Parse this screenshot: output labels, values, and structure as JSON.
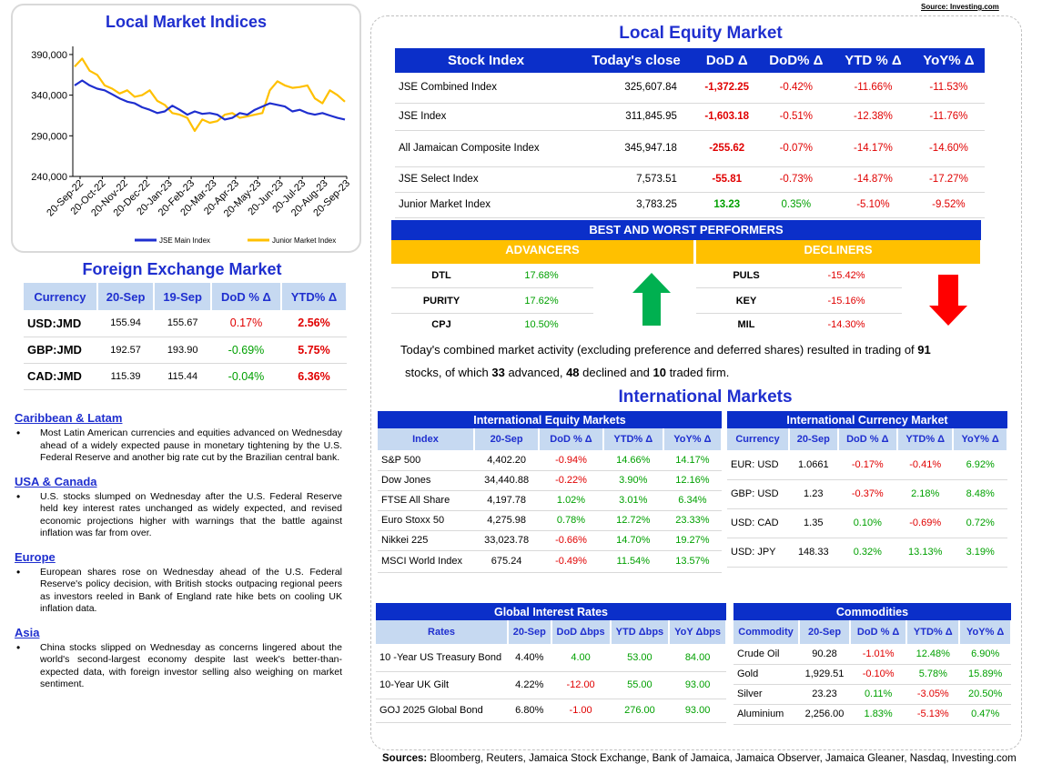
{
  "source_top": "Source: Investing.com",
  "indices_chart": {
    "title": "Local Market Indices",
    "chart_data": {
      "type": "line",
      "x_labels": [
        "20-Sep-22",
        "20-Oct-22",
        "20-Nov-22",
        "20-Dec-22",
        "20-Jan-23",
        "20-Feb-23",
        "20-Mar-23",
        "20-Apr-23",
        "20-May-23",
        "20-Jun-23",
        "20-Jul-23",
        "20-Aug-23",
        "20-Sep-23"
      ],
      "y_ticks": [
        "390,000",
        "340,000",
        "290,000",
        "240,000"
      ],
      "ylim": [
        240000,
        400000
      ],
      "series": [
        {
          "name": "JSE Main Index",
          "color": "#1f2fcf",
          "values": [
            352000,
            358000,
            352000,
            348000,
            346000,
            341000,
            336000,
            332000,
            330000,
            325000,
            322000,
            318000,
            320000,
            327000,
            322000,
            316000,
            320000,
            317000,
            318000,
            316000,
            310000,
            312000,
            318000,
            316000,
            322000,
            326000,
            330000,
            328000,
            326000,
            320000,
            322000,
            318000,
            316000,
            318000,
            315000,
            312000,
            310000
          ]
        },
        {
          "name": "Junior Market Index",
          "color": "#ffc000",
          "values": [
            375000,
            385000,
            370000,
            365000,
            352000,
            348000,
            342000,
            346000,
            338000,
            340000,
            346000,
            333000,
            328000,
            318000,
            316000,
            312000,
            296000,
            310000,
            306000,
            308000,
            316000,
            318000,
            312000,
            314000,
            316000,
            318000,
            346000,
            357000,
            352000,
            349000,
            350000,
            352000,
            336000,
            330000,
            346000,
            340000,
            332000
          ]
        }
      ]
    }
  },
  "fx": {
    "title": "Foreign Exchange Market",
    "headers": [
      "Currency",
      "20-Sep",
      "19-Sep",
      "DoD % Δ",
      "YTD% Δ"
    ],
    "rows": [
      {
        "cur": "USD:JMD",
        "a": "155.94",
        "b": "155.67",
        "dod": "0.17%",
        "ytd": "2.56%",
        "dod_c": "red",
        "ytd_c": "red"
      },
      {
        "cur": "GBP:JMD",
        "a": "192.57",
        "b": "193.90",
        "dod": "-0.69%",
        "ytd": "5.75%",
        "dod_c": "green",
        "ytd_c": "red"
      },
      {
        "cur": "CAD:JMD",
        "a": "115.39",
        "b": "115.44",
        "dod": "-0.04%",
        "ytd": "6.36%",
        "dod_c": "green",
        "ytd_c": "red"
      }
    ]
  },
  "news": [
    {
      "title": "Caribbean & Latam",
      "text": "Most Latin American currencies and equities advanced on Wednesday ahead of a widely expected pause in monetary tightening by the U.S. Federal Reserve and another big rate cut by the Brazilian central bank."
    },
    {
      "title": "USA & Canada",
      "text": "U.S. stocks slumped on Wednesday after the U.S. Federal Reserve held key interest rates unchanged as widely expected, and revised economic projections higher with warnings that the battle against inflation was far from over."
    },
    {
      "title": "Europe",
      "text": "European shares rose on Wednesday ahead of the U.S. Federal Reserve's policy decision, with British stocks outpacing regional peers as investors reeled in Bank of England rate hike bets on cooling UK inflation data."
    },
    {
      "title": "Asia",
      "text": "China stocks slipped on Wednesday as concerns lingered about the world's second-largest economy despite last week's better-than-expected data, with foreign investor selling also weighing on market sentiment."
    }
  ],
  "equity": {
    "title": "Local Equity Market",
    "headers": [
      "Stock Index",
      "Today's close",
      "DoD  Δ",
      "DoD% Δ",
      "YTD % Δ",
      "YoY% Δ"
    ],
    "rows": [
      {
        "name": "JSE Combined Index",
        "close": "325,607.84",
        "dod": "-1,372.25",
        "dodp": "-0.42%",
        "ytd": "-11.66%",
        "yoy": "-11.53%",
        "c": [
          "red",
          "red",
          "red",
          "red"
        ]
      },
      {
        "name": "JSE Index",
        "close": "311,845.95",
        "dod": "-1,603.18",
        "dodp": "-0.51%",
        "ytd": "-12.38%",
        "yoy": "-11.76%",
        "c": [
          "red",
          "red",
          "red",
          "red"
        ]
      },
      {
        "name": "All Jamaican Composite Index",
        "close": "345,947.18",
        "dod": "-255.62",
        "dodp": "-0.07%",
        "ytd": "-14.17%",
        "yoy": "-14.60%",
        "c": [
          "red",
          "red",
          "red",
          "red"
        ]
      },
      {
        "name": "JSE Select Index",
        "close": "7,573.51",
        "dod": "-55.81",
        "dodp": "-0.73%",
        "ytd": "-14.87%",
        "yoy": "-17.27%",
        "c": [
          "red",
          "red",
          "red",
          "red"
        ]
      },
      {
        "name": "Junior Market Index",
        "close": "3,783.25",
        "dod": "13.23",
        "dodp": "0.35%",
        "ytd": "-5.10%",
        "yoy": "-9.52%",
        "c": [
          "green",
          "green",
          "red",
          "red"
        ]
      }
    ]
  },
  "performers": {
    "title": "BEST AND WORST PERFORMERS",
    "advancers_label": "ADVANCERS",
    "decliners_label": "DECLINERS",
    "advancers": [
      {
        "sym": "DTL",
        "pct": "17.68%"
      },
      {
        "sym": "PURITY",
        "pct": "17.62%"
      },
      {
        "sym": "CPJ",
        "pct": "10.50%"
      }
    ],
    "decliners": [
      {
        "sym": "PULS",
        "pct": "-15.42%"
      },
      {
        "sym": "KEY",
        "pct": "-15.16%"
      },
      {
        "sym": "MIL",
        "pct": "-14.30%"
      }
    ]
  },
  "summary": {
    "p1": "Today's combined market activity (excluding preference and deferred shares) resulted in trading of ",
    "total": "91",
    "p2": "stocks, of which ",
    "adv": "33",
    "p3": " advanced, ",
    "dec": "48",
    "p4": " declined and ",
    "firm": "10",
    "p5": " traded firm."
  },
  "intl_title": "International Markets",
  "intl_equity": {
    "title": "International Equity Markets",
    "headers": [
      "Index",
      "20-Sep",
      "DoD % Δ",
      "YTD% Δ",
      "YoY% Δ"
    ],
    "rows": [
      {
        "name": "S&P 500",
        "v": "4,402.20",
        "dod": "-0.94%",
        "ytd": "14.66%",
        "yoy": "14.17%",
        "c": [
          "red",
          "green",
          "green"
        ]
      },
      {
        "name": "Dow Jones",
        "v": "34,440.88",
        "dod": "-0.22%",
        "ytd": "3.90%",
        "yoy": "12.16%",
        "c": [
          "red",
          "green",
          "green"
        ]
      },
      {
        "name": "FTSE All Share",
        "v": "4,197.78",
        "dod": "1.02%",
        "ytd": "3.01%",
        "yoy": "6.34%",
        "c": [
          "green",
          "green",
          "green"
        ]
      },
      {
        "name": "Euro Stoxx 50",
        "v": "4,275.98",
        "dod": "0.78%",
        "ytd": "12.72%",
        "yoy": "23.33%",
        "c": [
          "green",
          "green",
          "green"
        ]
      },
      {
        "name": "Nikkei 225",
        "v": "33,023.78",
        "dod": "-0.66%",
        "ytd": "14.70%",
        "yoy": "19.27%",
        "c": [
          "red",
          "green",
          "green"
        ]
      },
      {
        "name": "MSCI World Index",
        "v": "675.24",
        "dod": "-0.49%",
        "ytd": "11.54%",
        "yoy": "13.57%",
        "c": [
          "red",
          "green",
          "green"
        ]
      }
    ]
  },
  "intl_fx": {
    "title": "International Currency Market",
    "headers": [
      "Currency",
      "20-Sep",
      "DoD % Δ",
      "YTD% Δ",
      "YoY% Δ"
    ],
    "rows": [
      {
        "name": "EUR: USD",
        "v": "1.0661",
        "dod": "-0.17%",
        "ytd": "-0.41%",
        "yoy": "6.92%",
        "c": [
          "red",
          "red",
          "green"
        ]
      },
      {
        "name": "GBP: USD",
        "v": "1.23",
        "dod": "-0.37%",
        "ytd": "2.18%",
        "yoy": "8.48%",
        "c": [
          "red",
          "green",
          "green"
        ]
      },
      {
        "name": "USD: CAD",
        "v": "1.35",
        "dod": "0.10%",
        "ytd": "-0.69%",
        "yoy": "0.72%",
        "c": [
          "green",
          "red",
          "green"
        ]
      },
      {
        "name": "USD: JPY",
        "v": "148.33",
        "dod": "0.32%",
        "ytd": "13.13%",
        "yoy": "3.19%",
        "c": [
          "green",
          "green",
          "green"
        ]
      }
    ]
  },
  "rates": {
    "title": "Global Interest Rates",
    "headers": [
      "Rates",
      "20-Sep",
      "DoD Δbps",
      "YTD Δbps",
      "YoY Δbps"
    ],
    "rows": [
      {
        "name": "10 -Year US Treasury Bond",
        "v": "4.40%",
        "dod": "4.00",
        "ytd": "53.00",
        "yoy": "84.00",
        "c": [
          "green",
          "green",
          "green"
        ]
      },
      {
        "name": "10-Year UK Gilt",
        "v": "4.22%",
        "dod": "-12.00",
        "ytd": "55.00",
        "yoy": "93.00",
        "c": [
          "red",
          "green",
          "green"
        ]
      },
      {
        "name": "GOJ 2025 Global Bond",
        "v": "6.80%",
        "dod": "-1.00",
        "ytd": "276.00",
        "yoy": "93.00",
        "c": [
          "red",
          "green",
          "green"
        ]
      }
    ]
  },
  "commodities": {
    "title": "Commodities",
    "headers": [
      "Commodity",
      "20-Sep",
      "DoD % Δ",
      "YTD% Δ",
      "YoY% Δ"
    ],
    "rows": [
      {
        "name": "Crude Oil",
        "v": "90.28",
        "dod": "-1.01%",
        "ytd": "12.48%",
        "yoy": "6.90%",
        "c": [
          "red",
          "green",
          "green"
        ]
      },
      {
        "name": "Gold",
        "v": "1,929.51",
        "dod": "-0.10%",
        "ytd": "5.78%",
        "yoy": "15.89%",
        "c": [
          "red",
          "green",
          "green"
        ]
      },
      {
        "name": "Silver",
        "v": "23.23",
        "dod": "0.11%",
        "ytd": "-3.05%",
        "yoy": "20.50%",
        "c": [
          "green",
          "red",
          "green"
        ]
      },
      {
        "name": "Aluminium",
        "v": "2,256.00",
        "dod": "1.83%",
        "ytd": "-5.13%",
        "yoy": "0.47%",
        "c": [
          "green",
          "red",
          "green"
        ]
      }
    ]
  },
  "sources_label": "Sources:",
  "sources_text": " Bloomberg, Reuters, Jamaica Stock Exchange, Bank of Jamaica, Jamaica Observer, Jamaica Gleaner, Nasdaq, Investing.com"
}
